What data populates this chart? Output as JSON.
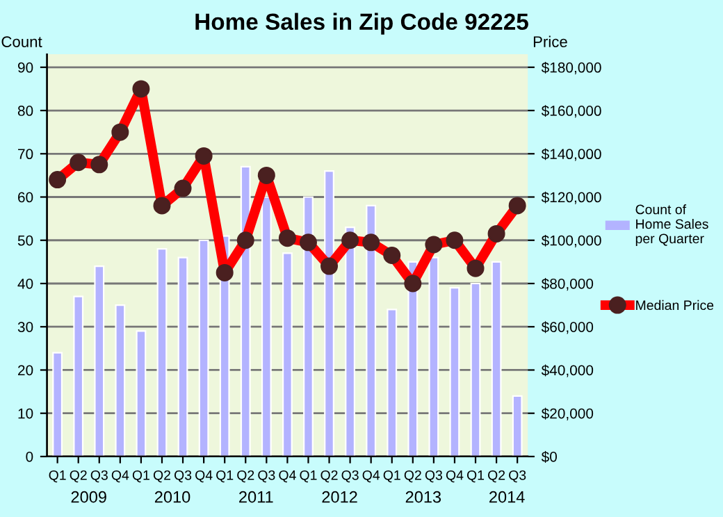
{
  "chart_data": {
    "type": "bar",
    "title": "Home Sales in Zip Code 92225",
    "ylabel": "Count",
    "y2label": "Price",
    "categories": [
      "Q1",
      "Q2",
      "Q3",
      "Q4",
      "Q1",
      "Q2",
      "Q3",
      "Q4",
      "Q1",
      "Q2",
      "Q3",
      "Q4",
      "Q1",
      "Q2",
      "Q3",
      "Q4",
      "Q1",
      "Q2",
      "Q3",
      "Q4",
      "Q1",
      "Q2",
      "Q3"
    ],
    "annotations": [
      "2009",
      "2010",
      "2011",
      "2012",
      "2013",
      "2014"
    ],
    "series": [
      {
        "name": "Count of Home Sales per Quarter",
        "color": "#b3b3ff",
        "values": [
          24,
          37,
          44,
          35,
          29,
          48,
          46,
          50,
          51,
          67,
          60,
          47,
          60,
          66,
          53,
          58,
          34,
          45,
          46,
          39,
          40,
          45,
          14
        ]
      },
      {
        "name": "Median Price",
        "type": "line",
        "axis": "y2",
        "color": "#ff0000",
        "marker": "circle",
        "values": [
          128000,
          136000,
          135000,
          150000,
          170000,
          116000,
          124000,
          139000,
          85000,
          100000,
          130000,
          101000,
          99000,
          88000,
          100000,
          99000,
          93000,
          80000,
          98000,
          100000,
          87000,
          103000,
          116000
        ]
      }
    ],
    "ylim": [
      0,
      93
    ],
    "yticks": [
      0,
      10,
      20,
      30,
      40,
      50,
      60,
      70,
      80,
      90
    ],
    "y2lim": [
      0,
      186000
    ],
    "y2ticks": [
      {
        "value": 0,
        "label": "$0"
      },
      {
        "value": 20000,
        "label": "$20,000"
      },
      {
        "value": 40000,
        "label": "$40,000"
      },
      {
        "value": 60000,
        "label": "$60,000"
      },
      {
        "value": 80000,
        "label": "$80,000"
      },
      {
        "value": 100000,
        "label": "$100,000"
      },
      {
        "value": 120000,
        "label": "$120,000"
      },
      {
        "value": 140000,
        "label": "$140,000"
      },
      {
        "value": 160000,
        "label": "$160,000"
      },
      {
        "value": 180000,
        "label": "$180,000"
      }
    ],
    "grid": "y",
    "legend": "right"
  }
}
